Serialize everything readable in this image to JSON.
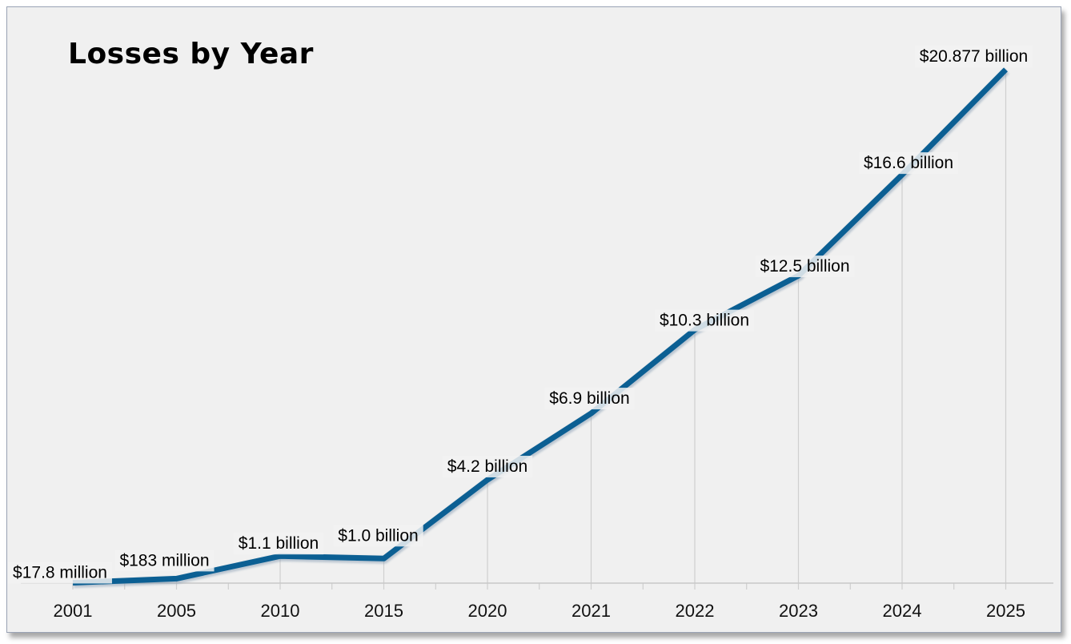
{
  "chart_data": {
    "type": "line",
    "title": "Losses by Year",
    "xlabel": "",
    "ylabel": "",
    "categories": [
      "2001",
      "2005",
      "2010",
      "2015",
      "2020",
      "2021",
      "2022",
      "2023",
      "2024",
      "2025"
    ],
    "values": [
      0.0178,
      0.183,
      1.1,
      1.0,
      4.2,
      6.9,
      10.3,
      12.5,
      16.6,
      20.877
    ],
    "value_unit": "USD billions",
    "data_labels": [
      "$17.8 million",
      "$183 million",
      "$1.1 billion",
      "$1.0 billion",
      "$4.2 billion",
      "$6.9 billion",
      "$10.3 billion",
      "$12.5 billion",
      "$16.6 billion",
      "$20.877 billion"
    ],
    "ylim": [
      0,
      21
    ],
    "grid": "vertical drop lines",
    "legend": "none",
    "line_color": "#0b5f93"
  }
}
